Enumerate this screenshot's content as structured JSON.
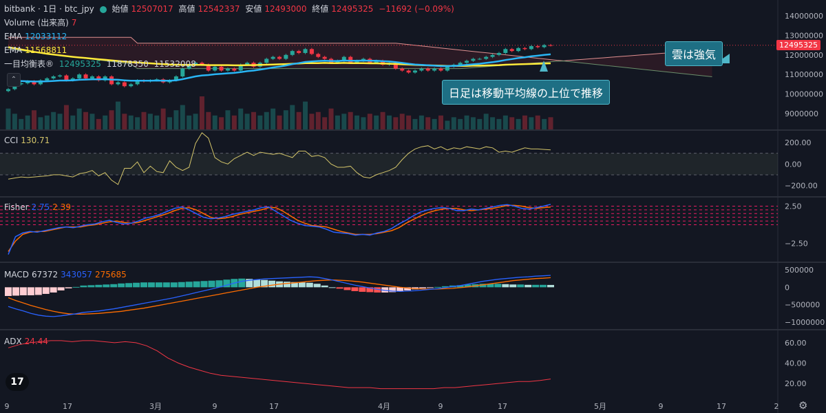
{
  "header": {
    "symbol": "bitbank · 1日 · btc_jpy",
    "open_label": "始値",
    "open": "12507017",
    "high_label": "高値",
    "high": "12542337",
    "low_label": "安値",
    "low": "12493000",
    "close_label": "終値",
    "close": "12495325",
    "change": "−11692 (−0.09%)"
  },
  "legends": {
    "volume_label": "Volume (出来高)",
    "volume_value": "7",
    "ema1_label": "EMA",
    "ema1_value": "12033112",
    "ema2_label": "EMA",
    "ema2_value": "11568811",
    "ichimoku_label": "一目均衡表®",
    "ichimoku_v1": "12495325",
    "ichimoku_v2": "11878350",
    "ichimoku_v3": "11532008",
    "cci_label": "CCI",
    "cci_value": "130.71",
    "fisher_label": "Fisher",
    "fisher_v1": "2.75",
    "fisher_v2": "2.39",
    "macd_label": "MACD",
    "macd_v1": "67372",
    "macd_v2": "343057",
    "macd_v3": "275685",
    "adx_label": "ADX",
    "adx_value": "24.44"
  },
  "annotations": {
    "cloud_note": "雲は強気",
    "trend_note": "日足は移動平均線の上位で推移"
  },
  "price_tag": "12495325",
  "colors": {
    "background": "#131722",
    "up": "#26a69a",
    "down": "#f23645",
    "ema_fast": "#29b6f6",
    "ema_slow": "#ffeb3b",
    "cci": "#d4c56a",
    "fisher": "#2962ff",
    "fisher_trigger": "#ff6d00",
    "adx": "#f23645"
  },
  "chart_data": [
    {
      "type": "candlestick",
      "title": "bitbank · 1日 · btc_jpy",
      "y_ticks": [
        "14000000",
        "13000000",
        "12000000",
        "11000000",
        "10000000",
        "9000000"
      ],
      "ylim": [
        8400000,
        14600000
      ],
      "x_ticks": [
        "9",
        "17",
        "3月",
        "9",
        "17",
        "4月",
        "9",
        "17",
        "5月",
        "9",
        "17",
        "2"
      ],
      "closes": [
        10250000,
        10500000,
        10550000,
        10650000,
        10500000,
        10700000,
        10800000,
        10900000,
        10950000,
        10700000,
        10800000,
        11000000,
        10800000,
        10900000,
        10700000,
        10900000,
        10500000,
        10600000,
        10400000,
        10500000,
        10700000,
        10650000,
        10700000,
        10750000,
        10600000,
        10700000,
        10900000,
        11300000,
        11500000,
        11600000,
        11500000,
        11200000,
        11400000,
        11200000,
        11300000,
        11200000,
        11500000,
        11600000,
        11400000,
        11600000,
        11800000,
        11900000,
        11800000,
        12000000,
        12200000,
        12100000,
        12300000,
        12050000,
        11900000,
        11800000,
        11600000,
        11700000,
        11900000,
        11600000,
        11700000,
        11800000,
        11600000,
        11700000,
        11500000,
        11600000,
        11300000,
        11200000,
        11100000,
        11200000,
        11300000,
        11200000,
        11300000,
        11200000,
        11400000,
        11500000,
        11600000,
        11700000,
        11800000,
        11800000,
        11900000,
        12000000,
        12100000,
        12300000,
        12200000,
        12350000,
        12300000,
        12450000,
        12400000,
        12500000,
        12495325
      ],
      "ema_fast": [
        10700000,
        10680000,
        10660000,
        10650000,
        10640000,
        10640000,
        10650000,
        10670000,
        10690000,
        10690000,
        10700000,
        10730000,
        10740000,
        10750000,
        10750000,
        10760000,
        10740000,
        10730000,
        10700000,
        10680000,
        10680000,
        10680000,
        10680000,
        10690000,
        10680000,
        10680000,
        10700000,
        10760000,
        10830000,
        10900000,
        10950000,
        10970000,
        11010000,
        11030000,
        11060000,
        11080000,
        11120000,
        11170000,
        11200000,
        11250000,
        11300000,
        11360000,
        11400000,
        11460000,
        11530000,
        11580000,
        11640000,
        11670000,
        11690000,
        11700000,
        11690000,
        11690000,
        11710000,
        11700000,
        11700000,
        11710000,
        11700000,
        11700000,
        11680000,
        11670000,
        11630000,
        11590000,
        11550000,
        11510000,
        11490000,
        11470000,
        11450000,
        11430000,
        11430000,
        11440000,
        11460000,
        11490000,
        11520000,
        11550000,
        11590000,
        11630000,
        11680000,
        11740000,
        11790000,
        11840000,
        11880000,
        11930000,
        11960000,
        12000000,
        12033112
      ],
      "ema_slow": [
        12400000,
        12340000,
        12280000,
        12220000,
        12160000,
        12110000,
        12060000,
        12020000,
        11980000,
        11940000,
        11900000,
        11870000,
        11840000,
        11810000,
        11780000,
        11750000,
        11720000,
        11690000,
        11660000,
        11630000,
        11610000,
        11590000,
        11570000,
        11550000,
        11530000,
        11510000,
        11500000,
        11490000,
        11490000,
        11490000,
        11490000,
        11480000,
        11480000,
        11480000,
        11480000,
        11470000,
        11470000,
        11480000,
        11480000,
        11490000,
        11500000,
        11510000,
        11520000,
        11530000,
        11550000,
        11560000,
        11580000,
        11580000,
        11580000,
        11590000,
        11580000,
        11580000,
        11590000,
        11580000,
        11580000,
        11580000,
        11570000,
        11570000,
        11560000,
        11550000,
        11540000,
        11520000,
        11510000,
        11490000,
        11480000,
        11470000,
        11460000,
        11450000,
        11440000,
        11440000,
        11440000,
        11440000,
        11450000,
        11450000,
        11460000,
        11470000,
        11480000,
        11500000,
        11510000,
        11520000,
        11530000,
        11540000,
        11550000,
        11560000,
        11568811
      ],
      "volumes": [
        60,
        45,
        30,
        40,
        55,
        35,
        40,
        50,
        45,
        70,
        40,
        60,
        50,
        45,
        30,
        40,
        55,
        80,
        45,
        40,
        35,
        50,
        45,
        40,
        60,
        35,
        55,
        70,
        40,
        45,
        95,
        50,
        40,
        35,
        55,
        40,
        60,
        45,
        50,
        40,
        50,
        60,
        40,
        55,
        70,
        50,
        80,
        45,
        50,
        35,
        60,
        40,
        45,
        50,
        40,
        35,
        45,
        40,
        50,
        40,
        35,
        45,
        40,
        30,
        40,
        35,
        30,
        40,
        25,
        35,
        30,
        40,
        35,
        30,
        45,
        35,
        30,
        40,
        35,
        30,
        40,
        35,
        40,
        30,
        35
      ]
    },
    {
      "type": "line",
      "name": "CCI",
      "y_ticks": [
        "200.00",
        "0.00",
        "−200.00"
      ],
      "ylim": [
        -260,
        270
      ],
      "bands": [
        100,
        -100
      ],
      "values": [
        -140,
        -130,
        -120,
        -125,
        -120,
        -115,
        -110,
        -100,
        -100,
        -110,
        -120,
        -90,
        -80,
        -60,
        -110,
        -80,
        -150,
        -190,
        -40,
        -40,
        20,
        -80,
        -20,
        -70,
        -80,
        30,
        -30,
        -60,
        -30,
        190,
        290,
        240,
        60,
        20,
        0,
        50,
        80,
        110,
        80,
        110,
        100,
        90,
        100,
        80,
        60,
        120,
        120,
        70,
        80,
        60,
        0,
        -30,
        -30,
        -20,
        -80,
        -120,
        -130,
        -100,
        -80,
        -60,
        -30,
        40,
        100,
        140,
        160,
        170,
        140,
        160,
        130,
        150,
        140,
        160,
        150,
        140,
        160,
        150,
        110,
        120,
        110,
        130,
        150,
        140,
        140,
        135,
        130.71
      ]
    },
    {
      "type": "line",
      "name": "Fisher",
      "y_ticks": [
        "2.50",
        "−2.50"
      ],
      "ylim": [
        -4.4,
        3.1
      ],
      "fisher": [
        -4.0,
        -1.6,
        -1.1,
        -0.9,
        -1.0,
        -0.8,
        -0.6,
        -0.4,
        -0.3,
        -0.4,
        -0.2,
        0.0,
        0.1,
        0.4,
        0.6,
        0.3,
        0.1,
        0.2,
        0.5,
        0.9,
        1.1,
        1.4,
        1.8,
        2.2,
        2.4,
        2.0,
        1.5,
        1.0,
        0.8,
        0.9,
        1.1,
        1.4,
        1.6,
        1.8,
        2.0,
        2.3,
        2.4,
        1.8,
        1.2,
        0.6,
        0.2,
        -0.1,
        -0.2,
        -0.3,
        -0.6,
        -1.0,
        -1.1,
        -1.2,
        -1.4,
        -1.3,
        -1.4,
        -1.1,
        -0.9,
        -0.5,
        0.1,
        0.6,
        1.2,
        1.7,
        2.0,
        2.2,
        2.3,
        2.2,
        1.9,
        1.9,
        2.1,
        2.0,
        2.2,
        2.4,
        2.6,
        2.7,
        2.5,
        2.2,
        2.1,
        2.3,
        2.5,
        2.75
      ],
      "trigger": [
        -3.6,
        -2.2,
        -1.3,
        -1.0,
        -0.9,
        -0.9,
        -0.7,
        -0.5,
        -0.3,
        -0.3,
        -0.3,
        -0.1,
        0.0,
        0.2,
        0.4,
        0.5,
        0.3,
        0.2,
        0.3,
        0.6,
        0.9,
        1.2,
        1.5,
        1.9,
        2.2,
        2.3,
        2.0,
        1.5,
        1.0,
        0.8,
        0.9,
        1.1,
        1.4,
        1.6,
        1.8,
        2.0,
        2.3,
        2.3,
        1.8,
        1.2,
        0.6,
        0.2,
        -0.1,
        -0.2,
        -0.3,
        -0.6,
        -0.9,
        -1.1,
        -1.3,
        -1.3,
        -1.3,
        -1.2,
        -1.0,
        -0.8,
        -0.4,
        0.2,
        0.7,
        1.2,
        1.6,
        1.9,
        2.1,
        2.2,
        2.2,
        2.0,
        1.9,
        2.0,
        2.1,
        2.2,
        2.4,
        2.6,
        2.6,
        2.5,
        2.3,
        2.2,
        2.3,
        2.39
      ],
      "levels": [
        2.5,
        2.0,
        1.5,
        1.0,
        0.5,
        0
      ]
    },
    {
      "type": "bar+line",
      "name": "MACD",
      "y_ticks": [
        "500000",
        "0",
        "−500000",
        "−1000000"
      ],
      "ylim": [
        -1080000,
        580000
      ],
      "macd": [
        -550000,
        -620000,
        -680000,
        -750000,
        -800000,
        -830000,
        -840000,
        -820000,
        -790000,
        -760000,
        -720000,
        -700000,
        -680000,
        -650000,
        -620000,
        -580000,
        -540000,
        -500000,
        -460000,
        -420000,
        -380000,
        -340000,
        -300000,
        -250000,
        -200000,
        -150000,
        -100000,
        -50000,
        0,
        60000,
        120000,
        170000,
        200000,
        220000,
        240000,
        250000,
        260000,
        270000,
        280000,
        290000,
        300000,
        290000,
        250000,
        210000,
        160000,
        110000,
        60000,
        20000,
        -20000,
        -60000,
        -90000,
        -110000,
        -120000,
        -110000,
        -100000,
        -80000,
        -60000,
        -40000,
        -10000,
        20000,
        50000,
        90000,
        130000,
        170000,
        200000,
        230000,
        250000,
        270000,
        290000,
        300000,
        320000,
        330000,
        343057
      ],
      "signal": [
        -300000,
        -380000,
        -450000,
        -520000,
        -580000,
        -640000,
        -690000,
        -730000,
        -760000,
        -770000,
        -770000,
        -760000,
        -750000,
        -730000,
        -710000,
        -690000,
        -660000,
        -630000,
        -600000,
        -560000,
        -520000,
        -480000,
        -440000,
        -400000,
        -360000,
        -320000,
        -280000,
        -240000,
        -200000,
        -160000,
        -120000,
        -80000,
        -40000,
        0,
        30000,
        60000,
        90000,
        110000,
        130000,
        150000,
        170000,
        190000,
        200000,
        210000,
        200000,
        190000,
        170000,
        150000,
        120000,
        90000,
        60000,
        30000,
        0,
        -20000,
        -40000,
        -50000,
        -55000,
        -50000,
        -40000,
        -30000,
        -10000,
        10000,
        40000,
        70000,
        100000,
        130000,
        160000,
        190000,
        210000,
        230000,
        250000,
        260000,
        275685
      ]
    },
    {
      "type": "line",
      "name": "ADX",
      "y_ticks": [
        "60.00",
        "40.00",
        "20.00"
      ],
      "ylim": [
        10,
        68
      ],
      "values": [
        55,
        58,
        60,
        61,
        62,
        62,
        61,
        62,
        62,
        61,
        60,
        61,
        60,
        57,
        52,
        45,
        40,
        36,
        33,
        30,
        28,
        27,
        26,
        25,
        24,
        23,
        22,
        21,
        20,
        19,
        18,
        17,
        16,
        16,
        16,
        15,
        15,
        15,
        15,
        15,
        15,
        16,
        16,
        17,
        18,
        19,
        20,
        21,
        22,
        22,
        23,
        24.44
      ]
    }
  ]
}
